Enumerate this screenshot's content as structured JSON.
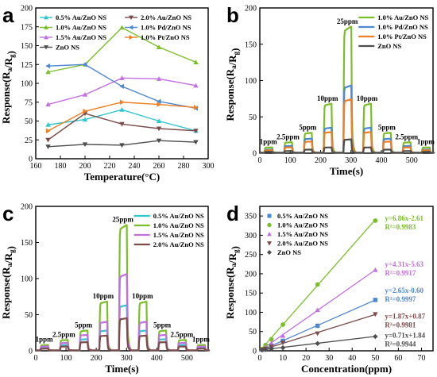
{
  "chart_data": [
    {
      "id": "a",
      "letter": "a",
      "type": "line",
      "xlabel": "Temperature(°C)",
      "ylabel": "Response(R_a/R_g)",
      "xlim": [
        160,
        300
      ],
      "ylim": [
        0,
        200
      ],
      "xticks": [
        160,
        180,
        200,
        220,
        240,
        260,
        280,
        300
      ],
      "yticks": [
        0,
        25,
        50,
        75,
        100,
        125,
        150,
        175,
        200
      ],
      "x": [
        170,
        200,
        230,
        260,
        290
      ],
      "series": [
        {
          "name": "0.5% Au/ZnO NS",
          "color": "#2ec7cf",
          "marker": "triangle-up",
          "values": [
            45,
            52,
            65,
            50,
            37
          ]
        },
        {
          "name": "1.0% Au/ZnO NS",
          "color": "#7bbf28",
          "marker": "triangle-up",
          "values": [
            115,
            125,
            174,
            148,
            128
          ]
        },
        {
          "name": "1.5% Au/ZnO NS",
          "color": "#c36fe0",
          "marker": "triangle-up",
          "values": [
            72,
            85,
            107,
            106,
            97
          ]
        },
        {
          "name": "2.0% Au/ZnO NS",
          "color": "#7d4a4a",
          "marker": "triangle-down",
          "values": [
            25,
            60,
            46,
            40,
            37
          ]
        },
        {
          "name": "1.0% Pd/ZnO NS",
          "color": "#4e88d0",
          "marker": "triangle-left",
          "values": [
            123,
            125,
            96,
            76,
            67
          ]
        },
        {
          "name": "1.0% Pt/ZnO NS",
          "color": "#f07e22",
          "marker": "triangle-right",
          "values": [
            37,
            63,
            75,
            72,
            68
          ]
        },
        {
          "name": "ZnO NS",
          "color": "#4d4d4d",
          "marker": "triangle-down",
          "values": [
            16,
            19,
            18,
            24,
            22
          ]
        }
      ],
      "legend_layout": "two-columns-top"
    },
    {
      "id": "b",
      "letter": "b",
      "type": "line",
      "xlabel": "Time(s)",
      "ylabel": "Response(R_a/R_g)",
      "xlim": [
        0,
        570
      ],
      "ylim": [
        0,
        200
      ],
      "xticks": [
        0,
        100,
        200,
        300,
        400,
        500
      ],
      "yticks": [
        0,
        50,
        100,
        150,
        200
      ],
      "pulses": [
        {
          "start": 15,
          "width": 26,
          "label": "1ppm"
        },
        {
          "start": 80,
          "width": 26,
          "label": "2.5ppm"
        },
        {
          "start": 145,
          "width": 26,
          "label": "5ppm"
        },
        {
          "start": 210,
          "width": 26,
          "label": "10ppm"
        },
        {
          "start": 275,
          "width": 26,
          "label": "25ppm"
        },
        {
          "start": 340,
          "width": 26,
          "label": "10ppm"
        },
        {
          "start": 405,
          "width": 26,
          "label": "5ppm"
        },
        {
          "start": 470,
          "width": 26,
          "label": "2.5ppm"
        },
        {
          "start": 533,
          "width": 26,
          "label": "1ppm"
        }
      ],
      "series": [
        {
          "name": "1.0% Au/ZnO NS",
          "color": "#7bbf28",
          "peaks": [
            8,
            15,
            28,
            68,
            174,
            68,
            28,
            15,
            8
          ]
        },
        {
          "name": "1.0% Pd/ZnO NS",
          "color": "#4e88d0",
          "peaks": [
            5,
            10,
            20,
            35,
            93,
            35,
            20,
            10,
            5
          ]
        },
        {
          "name": "1.0% Pt/ZnO NS",
          "color": "#f07e22",
          "peaks": [
            4,
            8,
            16,
            29,
            74,
            29,
            16,
            8,
            4
          ]
        },
        {
          "name": "ZnO NS",
          "color": "#4d4d4d",
          "peaks": [
            2,
            3,
            5,
            8,
            19,
            8,
            5,
            3,
            2
          ]
        }
      ],
      "legend_layout": "top-right"
    },
    {
      "id": "c",
      "letter": "c",
      "type": "line",
      "xlabel": "Time(s)",
      "ylabel": "Response(R_a/R_g)",
      "xlim": [
        0,
        570
      ],
      "ylim": [
        0,
        200
      ],
      "xticks": [
        0,
        100,
        200,
        300,
        400,
        500
      ],
      "yticks": [
        0,
        50,
        100,
        150,
        200
      ],
      "pulses": [
        {
          "start": 15,
          "width": 26,
          "label": "1ppm"
        },
        {
          "start": 80,
          "width": 26,
          "label": "2.5ppm"
        },
        {
          "start": 145,
          "width": 26,
          "label": "5ppm"
        },
        {
          "start": 210,
          "width": 26,
          "label": "10ppm"
        },
        {
          "start": 275,
          "width": 26,
          "label": "25ppm"
        },
        {
          "start": 340,
          "width": 26,
          "label": "10ppm"
        },
        {
          "start": 405,
          "width": 26,
          "label": "5ppm"
        },
        {
          "start": 470,
          "width": 26,
          "label": "2.5ppm"
        },
        {
          "start": 533,
          "width": 26,
          "label": "1ppm"
        }
      ],
      "series": [
        {
          "name": "0.5% Au/ZnO NS",
          "color": "#2ec7cf",
          "peaks": [
            4,
            8,
            16,
            28,
            63,
            28,
            16,
            8,
            4
          ]
        },
        {
          "name": "1.0% Au/ZnO NS",
          "color": "#7bbf28",
          "peaks": [
            8,
            15,
            28,
            68,
            174,
            68,
            28,
            15,
            8
          ]
        },
        {
          "name": "1.5% Au/ZnO NS",
          "color": "#c36fe0",
          "peaks": [
            6,
            11,
            22,
            40,
            106,
            40,
            22,
            11,
            6
          ]
        },
        {
          "name": "2.0% Au/ZnO NS",
          "color": "#7d4a4a",
          "peaks": [
            3,
            6,
            12,
            21,
            45,
            21,
            12,
            6,
            3
          ]
        }
      ],
      "legend_layout": "top-right"
    },
    {
      "id": "d",
      "letter": "d",
      "type": "scatter",
      "xlabel": "Concentration(ppm)",
      "ylabel": "Response(R_a/R_g)",
      "xlim": [
        0,
        75
      ],
      "ylim": [
        0,
        375
      ],
      "xticks": [
        0,
        10,
        20,
        30,
        40,
        50,
        60,
        70
      ],
      "yticks": [
        0,
        50,
        100,
        150,
        200,
        250,
        300,
        350
      ],
      "x": [
        1,
        2.5,
        5,
        10,
        25,
        50
      ],
      "series": [
        {
          "name": "0.5% Au/ZnO NS",
          "color": "#4e88d0",
          "marker": "square",
          "values": [
            3,
            6,
            12,
            26,
            65,
            132
          ],
          "fit_text": "y=2.65x-0.60",
          "r2_text": "R²=0.9997"
        },
        {
          "name": "1.0% Au/ZnO NS",
          "color": "#7bbf28",
          "marker": "circle",
          "values": [
            5,
            15,
            30,
            68,
            172,
            338
          ],
          "fit_text": "y=6.86x-2.61",
          "r2_text": "R²=0.9983"
        },
        {
          "name": "1.5% Au/ZnO NS",
          "color": "#c36fe0",
          "marker": "triangle-up",
          "values": [
            4,
            9,
            20,
            39,
            106,
            210
          ],
          "fit_text": "y=4.31x-5.63",
          "r2_text": "R²=0.9917"
        },
        {
          "name": "2.0% Au/ZnO NS",
          "color": "#7d4a4a",
          "marker": "triangle-down",
          "values": [
            3,
            5,
            11,
            21,
            45,
            95
          ],
          "fit_text": "y=1.87x+0.87",
          "r2_text": "R²=0.9981"
        },
        {
          "name": "ZnO NS",
          "color": "#4d4d4d",
          "marker": "diamond",
          "values": [
            2,
            3,
            5,
            8,
            19,
            37
          ],
          "fit_text": "y=0.71x+1.84",
          "r2_text": "R²=0.9944"
        }
      ],
      "fits": [
        {
          "series": 0,
          "slope": 2.65,
          "intercept": -0.6
        },
        {
          "series": 1,
          "slope": 6.86,
          "intercept": -2.61
        },
        {
          "series": 2,
          "slope": 4.31,
          "intercept": -5.63
        },
        {
          "series": 3,
          "slope": 1.87,
          "intercept": 0.87
        },
        {
          "series": 4,
          "slope": 0.71,
          "intercept": 1.84
        }
      ],
      "legend_layout": "top-left"
    }
  ]
}
